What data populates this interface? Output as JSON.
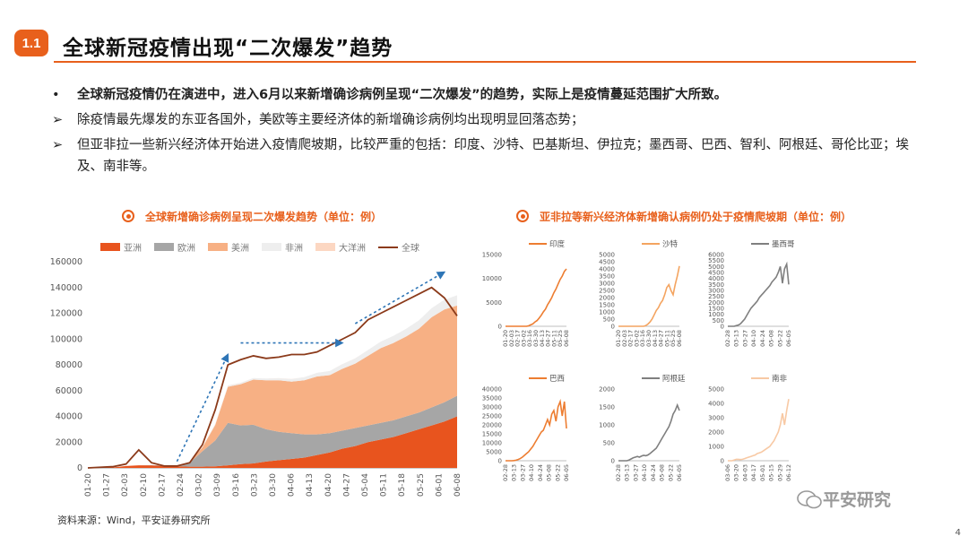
{
  "header": {
    "badge": "1.1",
    "title": "全球新冠疫情出现“二次爆发”趋势"
  },
  "bullets": [
    {
      "mark": "•",
      "text": "全球新冠疫情仍在演进中，进入6月以来新增确诊病例呈现“二次爆发”的趋势，实际上是疫情蔓延范围扩大所致。",
      "bold": true
    },
    {
      "mark": "➢",
      "text": "除疫情最先爆发的东亚各国外，美欧等主要经济体的新增确诊病例均出现明显回落态势；",
      "bold": false
    },
    {
      "mark": "➢",
      "text": "但亚非拉一些新兴经济体开始进入疫情爬坡期，比较严重的包括：印度、沙特、巴基斯坦、伊拉克；墨西哥、巴西、智利、阿根廷、哥伦比亚；埃及、南非等。",
      "bold": false
    }
  ],
  "left_chart_title": "全球新增确诊病例呈现二次爆发趋势（单位：例）",
  "right_chart_title": "亚非拉等新兴经济体新增确认病例仍处于疫情爬坡期（单位：例）",
  "source": "资料来源：Wind，平安证券研究所",
  "watermark": "平安研究",
  "page_number": "4",
  "colors": {
    "accent": "#e8601c",
    "asia": "#e8541e",
    "europe": "#a6a6a6",
    "america": "#f7b084",
    "africa": "#eeeeee",
    "oceania": "#fcd7c2",
    "global": "#8b3a1a",
    "arrow": "#2e75b6"
  },
  "chart_data": [
    {
      "type": "area",
      "title": "全球新增确诊病例呈现二次爆发趋势（单位：例）",
      "legend": [
        "亚洲",
        "欧洲",
        "美洲",
        "非洲",
        "大洋洲",
        "全球"
      ],
      "x_ticks": [
        "01-20",
        "01-27",
        "02-03",
        "02-10",
        "02-17",
        "02-24",
        "03-02",
        "03-09",
        "03-16",
        "03-23",
        "03-30",
        "04-06",
        "04-13",
        "04-20",
        "04-27",
        "05-04",
        "05-11",
        "05-18",
        "05-25",
        "06-01",
        "06-08"
      ],
      "y_ticks": [
        0,
        20000,
        40000,
        60000,
        80000,
        100000,
        120000,
        140000,
        160000
      ],
      "ylim": [
        0,
        160000
      ],
      "series": [
        {
          "name": "亚洲",
          "values": [
            0,
            200,
            400,
            1500,
            2000,
            2000,
            1500,
            1200,
            1000,
            1000,
            1200,
            2000,
            3000,
            3500,
            5000,
            6000,
            7000,
            8000,
            10000,
            12000,
            15000,
            17000,
            20000,
            22000,
            24000,
            27000,
            30000,
            33000,
            36000,
            40000
          ]
        },
        {
          "name": "欧洲",
          "values": [
            0,
            0,
            0,
            0,
            0,
            200,
            300,
            500,
            3000,
            12000,
            20000,
            33000,
            30000,
            30000,
            25000,
            22000,
            20000,
            18000,
            16000,
            15000,
            14000,
            14000,
            13000,
            13000,
            13000,
            13000,
            13000,
            14000,
            15000,
            16000
          ]
        },
        {
          "name": "美洲",
          "values": [
            0,
            0,
            0,
            0,
            0,
            0,
            0,
            100,
            600,
            3000,
            12000,
            28000,
            32000,
            35000,
            38000,
            40000,
            40000,
            42000,
            45000,
            45000,
            48000,
            50000,
            54000,
            58000,
            60000,
            62000,
            65000,
            70000,
            72000,
            70000
          ]
        },
        {
          "name": "非洲",
          "values": [
            0,
            0,
            0,
            0,
            0,
            0,
            0,
            0,
            50,
            200,
            500,
            800,
            1000,
            1200,
            1400,
            1600,
            2000,
            2400,
            2800,
            3200,
            3600,
            4000,
            4500,
            5000,
            5500,
            6000,
            6500,
            7000,
            7500,
            8000
          ]
        },
        {
          "name": "大洋洲",
          "values": [
            0,
            0,
            0,
            0,
            0,
            0,
            0,
            0,
            50,
            100,
            300,
            200,
            100,
            50,
            20,
            20,
            20,
            20,
            20,
            20,
            20,
            20,
            20,
            20,
            20,
            20,
            20,
            20,
            20,
            20
          ]
        }
      ],
      "global_peaks": [
        0,
        500,
        1000,
        3000,
        14000,
        4000,
        1500,
        1500,
        4000,
        18000,
        45000,
        80000,
        84000,
        87000,
        85000,
        86000,
        88000,
        88000,
        90000,
        95000,
        100000,
        105000,
        115000,
        120000,
        125000,
        130000,
        135000,
        140000,
        132000,
        118000
      ]
    },
    {
      "type": "line",
      "title": "印度",
      "color": "#ed7d31",
      "ylim": [
        0,
        15000
      ],
      "y_ticks": [
        0,
        5000,
        10000,
        15000
      ],
      "x_ticks": [
        "01-20",
        "02-03",
        "02-17",
        "03-02",
        "03-16",
        "03-30",
        "04-13",
        "04-27",
        "05-11",
        "05-25",
        "06-08"
      ],
      "values": [
        0,
        0,
        0,
        0,
        0,
        0,
        0,
        0,
        0,
        0,
        0,
        100,
        300,
        500,
        900,
        1200,
        1700,
        2300,
        3000,
        3600,
        4500,
        5200,
        6000,
        7000,
        7800,
        8800,
        9800,
        10500,
        11500,
        12000
      ]
    },
    {
      "type": "line",
      "title": "沙特",
      "color": "#f4a460",
      "ylim": [
        0,
        5000
      ],
      "y_ticks": [
        0,
        500,
        1000,
        1500,
        2000,
        2500,
        3000,
        3500,
        4000,
        4500,
        5000
      ],
      "x_ticks": [
        "01-20",
        "02-03",
        "02-17",
        "03-02",
        "03-16",
        "03-30",
        "04-13",
        "04-27",
        "05-11",
        "05-25",
        "06-08"
      ],
      "values": [
        0,
        0,
        0,
        0,
        0,
        0,
        0,
        0,
        0,
        0,
        0,
        0,
        0,
        50,
        150,
        300,
        500,
        800,
        1100,
        1300,
        1600,
        1800,
        2200,
        2700,
        2900,
        2500,
        2200,
        2900,
        3500,
        4200
      ]
    },
    {
      "type": "line",
      "title": "墨西哥",
      "color": "#7f7f7f",
      "ylim": [
        0,
        6000
      ],
      "y_ticks": [
        0,
        500,
        1000,
        1500,
        2000,
        2500,
        3000,
        3500,
        4000,
        4500,
        5000,
        5500,
        6000
      ],
      "x_ticks": [
        "02-28",
        "03-13",
        "03-27",
        "04-10",
        "04-24",
        "05-08",
        "05-22",
        "06-05"
      ],
      "values": [
        0,
        0,
        0,
        0,
        50,
        100,
        200,
        400,
        600,
        900,
        1200,
        1500,
        1700,
        1900,
        2100,
        2400,
        2600,
        2800,
        3000,
        3200,
        3400,
        3700,
        3900,
        4100,
        4500,
        5000,
        3600,
        4800,
        5200,
        3500
      ]
    },
    {
      "type": "line",
      "title": "巴西",
      "color": "#ed7d31",
      "ylim": [
        0,
        40000
      ],
      "y_ticks": [
        0,
        5000,
        10000,
        15000,
        20000,
        25000,
        30000,
        35000,
        40000
      ],
      "x_ticks": [
        "02-28",
        "03-13",
        "03-27",
        "04-10",
        "04-24",
        "05-08",
        "05-22",
        "06-05"
      ],
      "values": [
        0,
        0,
        0,
        0,
        100,
        300,
        700,
        1200,
        2000,
        3000,
        4000,
        5000,
        6500,
        8000,
        10000,
        12000,
        14000,
        16000,
        17000,
        20000,
        23000,
        20000,
        26000,
        28000,
        22000,
        30000,
        33000,
        25000,
        33000,
        18000
      ]
    },
    {
      "type": "line",
      "title": "阿根廷",
      "color": "#7f7f7f",
      "ylim": [
        0,
        2000
      ],
      "y_ticks": [
        0,
        500,
        1000,
        1500,
        2000
      ],
      "x_ticks": [
        "02-28",
        "03-13",
        "03-27",
        "04-10",
        "04-24",
        "05-08",
        "05-22",
        "06-05"
      ],
      "values": [
        0,
        0,
        0,
        0,
        0,
        20,
        50,
        80,
        100,
        120,
        100,
        130,
        150,
        140,
        160,
        200,
        250,
        300,
        350,
        450,
        550,
        650,
        750,
        850,
        950,
        1100,
        1300,
        1400,
        1550,
        1400
      ]
    },
    {
      "type": "line",
      "title": "南非",
      "color": "#f8c9a4",
      "ylim": [
        0,
        5000
      ],
      "y_ticks": [
        0,
        1000,
        2000,
        3000,
        4000,
        5000
      ],
      "x_ticks": [
        "03-06",
        "03-20",
        "04-03",
        "04-17",
        "05-01",
        "05-15",
        "05-29",
        "06-12"
      ],
      "values": [
        0,
        0,
        0,
        50,
        100,
        100,
        80,
        100,
        150,
        200,
        250,
        300,
        350,
        400,
        500,
        550,
        600,
        700,
        800,
        900,
        1000,
        1200,
        1400,
        1700,
        2000,
        2500,
        3300,
        2500,
        3500,
        4300
      ]
    }
  ]
}
